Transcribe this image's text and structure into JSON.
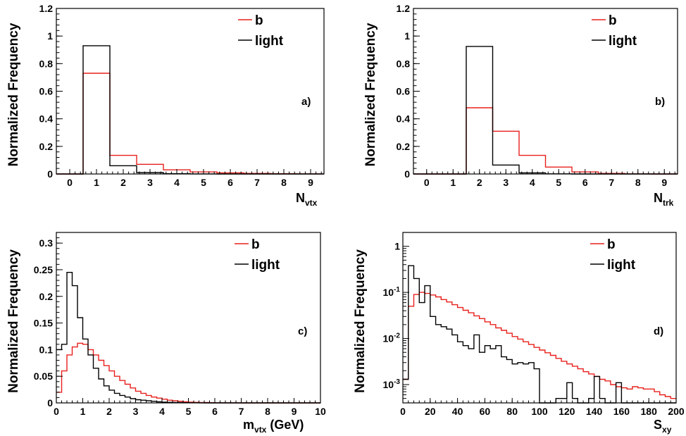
{
  "colors": {
    "b": "#e8201c",
    "light": "#000000"
  },
  "chart_data": [
    {
      "type": "histogram",
      "panel_label": "a)",
      "ylabel": "Normalized Frequency",
      "xlabel_main": "N",
      "xlabel_sub": "vtx",
      "xlabel_suffix": "",
      "xlim": [
        -0.5,
        9.5
      ],
      "ylim": [
        0,
        1.2
      ],
      "log_y": false,
      "xticks": [
        "0",
        "1",
        "2",
        "3",
        "4",
        "5",
        "6",
        "7",
        "8",
        "9"
      ],
      "yticks": [
        "0",
        "0.2",
        "0.4",
        "0.6",
        "0.8",
        "1",
        "1.2"
      ],
      "legend_position": "top-right",
      "bins": {
        "start": -0.5,
        "width": 1
      },
      "series": [
        {
          "name": "b",
          "values": [
            0,
            0.73,
            0.135,
            0.07,
            0.03,
            0.015,
            0.008,
            0.004,
            0.002,
            0.001
          ]
        },
        {
          "name": "light",
          "values": [
            0,
            0.93,
            0.06,
            0.01,
            0.002,
            0.0005,
            0,
            0,
            0,
            0
          ]
        }
      ]
    },
    {
      "type": "histogram",
      "panel_label": "b)",
      "ylabel": "Normalized Frequency",
      "xlabel_main": "N",
      "xlabel_sub": "trk",
      "xlabel_suffix": "",
      "xlim": [
        -0.5,
        9.5
      ],
      "ylim": [
        0,
        1.2
      ],
      "log_y": false,
      "xticks": [
        "0",
        "1",
        "2",
        "3",
        "4",
        "5",
        "6",
        "7",
        "8",
        "9"
      ],
      "yticks": [
        "0",
        "0.2",
        "0.4",
        "0.6",
        "0.8",
        "1",
        "1.2"
      ],
      "legend_position": "top-right",
      "bins": {
        "start": -0.5,
        "width": 1
      },
      "series": [
        {
          "name": "b",
          "values": [
            0,
            0,
            0.48,
            0.31,
            0.135,
            0.05,
            0.015,
            0.004,
            0.001,
            0
          ]
        },
        {
          "name": "light",
          "values": [
            0,
            0,
            0.925,
            0.065,
            0.008,
            0.001,
            0,
            0,
            0,
            0
          ]
        }
      ]
    },
    {
      "type": "histogram",
      "panel_label": "c)",
      "ylabel": "Normalized Frequency",
      "xlabel_main": "m",
      "xlabel_sub": "vtx",
      "xlabel_suffix": " (GeV)",
      "xlim": [
        0,
        10
      ],
      "ylim": [
        0,
        0.32
      ],
      "log_y": false,
      "xticks": [
        "0",
        "1",
        "2",
        "3",
        "4",
        "5",
        "6",
        "7",
        "8",
        "9",
        "10"
      ],
      "yticks": [
        "0",
        "0.05",
        "0.1",
        "0.15",
        "0.2",
        "0.25",
        "0.3"
      ],
      "legend_position": "top-right",
      "bins": {
        "start": 0,
        "width": 0.2
      },
      "series": [
        {
          "name": "b",
          "values": [
            0.02,
            0.06,
            0.09,
            0.105,
            0.112,
            0.11,
            0.1,
            0.09,
            0.08,
            0.07,
            0.06,
            0.05,
            0.042,
            0.035,
            0.028,
            0.022,
            0.018,
            0.014,
            0.011,
            0.009,
            0.007,
            0.005,
            0.004,
            0.003,
            0.002,
            0.0015,
            0.001,
            0.0008,
            0.0006,
            0.0004,
            0.0003,
            0.0002,
            0.0002,
            0.0001,
            0.0001,
            0,
            0,
            0,
            0,
            0,
            0,
            0,
            0,
            0,
            0,
            0,
            0,
            0,
            0,
            0
          ]
        },
        {
          "name": "light",
          "values": [
            0.1,
            0.11,
            0.245,
            0.22,
            0.16,
            0.12,
            0.09,
            0.065,
            0.045,
            0.032,
            0.024,
            0.018,
            0.014,
            0.011,
            0.008,
            0.006,
            0.005,
            0.004,
            0.003,
            0.002,
            0.0015,
            0.001,
            0.0008,
            0.0006,
            0.0004,
            0.0003,
            0.0002,
            0.0001,
            0,
            0,
            0,
            0,
            0,
            0,
            0,
            0,
            0,
            0,
            0,
            0,
            0,
            0,
            0,
            0,
            0,
            0,
            0,
            0,
            0,
            0
          ]
        }
      ]
    },
    {
      "type": "histogram",
      "panel_label": "d)",
      "ylabel": "Normalized Frequency",
      "xlabel_main": "S",
      "xlabel_sub": "xy",
      "xlabel_suffix": "",
      "xlim": [
        0,
        200
      ],
      "ylim": [
        0.0004,
        2
      ],
      "log_y": true,
      "xticks": [
        "0",
        "20",
        "40",
        "60",
        "80",
        "100",
        "120",
        "140",
        "160",
        "180",
        "200"
      ],
      "yticks": [
        {
          "value": 0.001,
          "base": "10",
          "exp": "-3"
        },
        {
          "value": 0.01,
          "base": "10",
          "exp": "-2"
        },
        {
          "value": 0.1,
          "base": "10",
          "exp": "-1"
        },
        {
          "value": 1,
          "base": "1",
          "exp": ""
        }
      ],
      "legend_position": "top-right",
      "bins": {
        "start": 0,
        "width": 4
      },
      "series": [
        {
          "name": "b",
          "values": [
            0.0013,
            0.05,
            0.09,
            0.1,
            0.095,
            0.088,
            0.08,
            0.07,
            0.062,
            0.054,
            0.047,
            0.041,
            0.036,
            0.031,
            0.027,
            0.023,
            0.02,
            0.017,
            0.015,
            0.013,
            0.011,
            0.0097,
            0.0085,
            0.0074,
            0.0064,
            0.0056,
            0.0049,
            0.0043,
            0.0037,
            0.0032,
            0.0028,
            0.0025,
            0.0022,
            0.0019,
            0.0017,
            0.0015,
            0.0013,
            0.0012,
            0.001,
            0.0009,
            0.00085,
            0.0008,
            0.0009,
            0.00085,
            0.0008,
            0.0008,
            0.0007,
            0.0006,
            0.00055,
            0.0005
          ]
        },
        {
          "name": "light",
          "values": [
            0.0013,
            0.38,
            0.2,
            0.06,
            0.14,
            0.03,
            0.02,
            0.018,
            0.016,
            0.012,
            0.0085,
            0.007,
            0.006,
            0.012,
            0.005,
            0.007,
            0.006,
            0.007,
            0.004,
            0.0035,
            0.0028,
            0.003,
            0.0028,
            0.003,
            0.0022,
            0,
            0,
            0,
            0.0005,
            0.0005,
            0.0011,
            0.0005,
            0,
            0,
            0.0005,
            0.0015,
            0.0005,
            0,
            0.0004,
            0.0011,
            0.0004,
            0.0004,
            0,
            0,
            0,
            0,
            0,
            0,
            0,
            0
          ]
        }
      ]
    }
  ]
}
